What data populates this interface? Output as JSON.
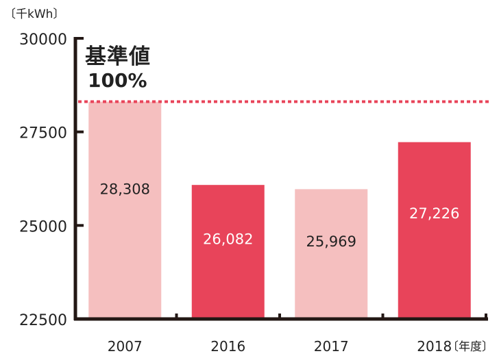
{
  "chart_data": {
    "type": "bar",
    "unit_label": "〔千kWh〕",
    "x_unit_label": "〔年度〕",
    "categories": [
      "2007",
      "2016",
      "2017",
      "2018"
    ],
    "values": [
      28308,
      26082,
      25969,
      27226
    ],
    "value_labels": [
      "28,308",
      "26,082",
      "25,969",
      "27,226"
    ],
    "bar_colors": [
      "#f5bfbf",
      "#e8445a",
      "#f5bfbf",
      "#e8445a"
    ],
    "label_colors": [
      "#222222",
      "#ffffff",
      "#222222",
      "#ffffff"
    ],
    "ylim": [
      22500,
      30000
    ],
    "yticks": [
      22500,
      25000,
      27500,
      30000
    ],
    "ytick_labels": [
      "22500",
      "25000",
      "27500",
      "30000"
    ],
    "reference_line": {
      "value": 28308,
      "style": "dotted",
      "color": "#e8445a"
    },
    "reference_label_line1": "基準値",
    "reference_label_line2": "100%",
    "axis_color": "#231815",
    "grid": false
  }
}
